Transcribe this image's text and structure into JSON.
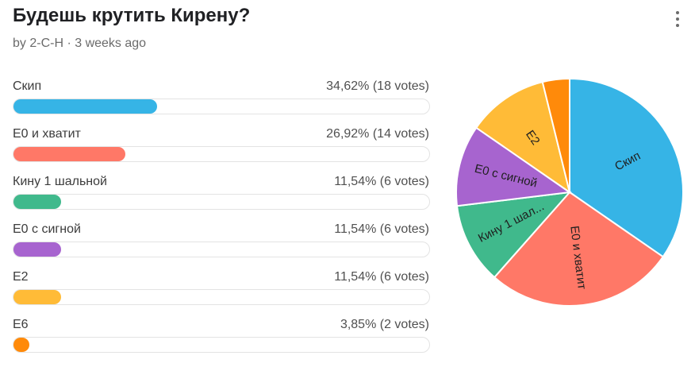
{
  "poll": {
    "title": "Будешь крутить Кирену?",
    "byline": "by 2-C-H · 3 weeks ago"
  },
  "options": [
    {
      "label": "Скип",
      "stats": "34,62% (18 votes)",
      "percent": 34.62,
      "votes": 18,
      "color": "#36b4e6"
    },
    {
      "label": "E0 и хватит",
      "stats": "26,92% (14 votes)",
      "percent": 26.92,
      "votes": 14,
      "color": "#ff7867"
    },
    {
      "label": "Кину 1 шальной",
      "stats": "11,54% (6 votes)",
      "percent": 11.54,
      "votes": 6,
      "color": "#40b98c"
    },
    {
      "label": "E0 с сигной",
      "stats": "11,54% (6 votes)",
      "percent": 11.54,
      "votes": 6,
      "color": "#a764cf"
    },
    {
      "label": "E2",
      "stats": "11,54% (6 votes)",
      "percent": 11.54,
      "votes": 6,
      "color": "#ffbb37"
    },
    {
      "label": "E6",
      "stats": "3,85% (2 votes)",
      "percent": 3.85,
      "votes": 2,
      "color": "#ff8a0a"
    }
  ],
  "chart_data": {
    "type": "pie",
    "categories": [
      "Скип",
      "E0 и хватит",
      "Кину 1 шальной",
      "E0 с сигной",
      "E2",
      "E6"
    ],
    "values": [
      18,
      14,
      6,
      6,
      6,
      2
    ],
    "slice_labels": [
      "Скип",
      "E0 и хватит",
      "Кину 1 шал...",
      "E0 с сигной",
      "E2",
      ""
    ],
    "colors": [
      "#36b4e6",
      "#ff7867",
      "#40b98c",
      "#a764cf",
      "#ffbb37",
      "#ff8a0a"
    ]
  }
}
